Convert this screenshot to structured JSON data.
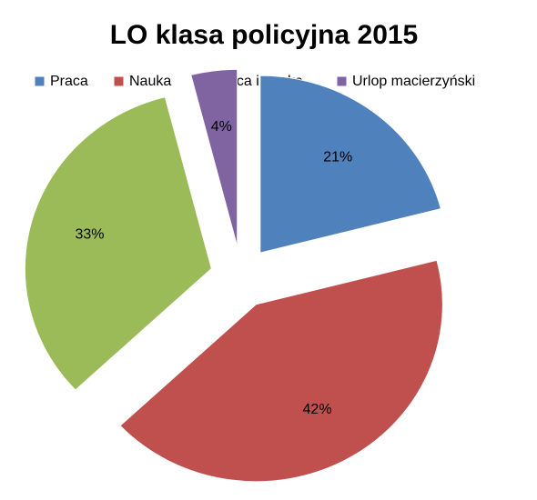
{
  "chart_data": {
    "type": "pie",
    "title": "LO klasa policyjna 2015",
    "categories": [
      "Praca",
      "Nauka",
      "Praca i nauka",
      "Urlop macierzyński"
    ],
    "values": [
      21,
      42,
      33,
      4
    ],
    "value_labels": [
      "21%",
      "42%",
      "33%",
      "4%"
    ],
    "colors": [
      "#4f81bd",
      "#c0504d",
      "#9bbb59",
      "#8064a2"
    ],
    "legend": "top"
  }
}
